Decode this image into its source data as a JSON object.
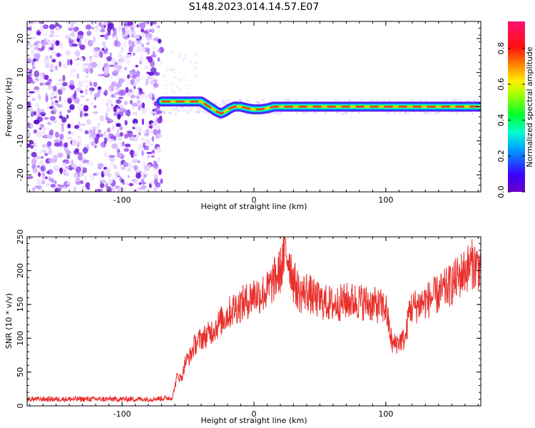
{
  "title": "S148.2023.014.14.57.E07",
  "colors": {
    "snr_line": "#e8302c",
    "noise_purple": "#7b1fe0",
    "axis": "#000000"
  },
  "chart_data": [
    {
      "type": "heatmap",
      "title": "S148.2023.014.14.57.E07",
      "xlabel": "Height of straight line (km)",
      "ylabel": "Frequency (Hz)",
      "xlim": [
        -172,
        172
      ],
      "ylim": [
        -25,
        25
      ],
      "x_ticks": [
        -100,
        0,
        100
      ],
      "y_ticks": [
        -20,
        -10,
        0,
        10,
        20
      ],
      "x_tick_labels": [
        "-100",
        "0",
        "100"
      ],
      "y_tick_labels": [
        "-20",
        "-10",
        "0",
        "10",
        "20"
      ],
      "colorbar": {
        "label": "Normalized spectral amplitude",
        "range": [
          0.0,
          0.95
        ],
        "ticks": [
          0.0,
          0.2,
          0.4,
          0.6,
          0.8
        ],
        "tick_labels": [
          "0.0",
          "0.2",
          "0.4",
          "0.6",
          "0.8"
        ],
        "colormap": "rainbow (purple-blue-cyan-green-yellow-red-magenta)"
      },
      "noise_region_x": [
        -172,
        -70
      ],
      "signal_track": {
        "x": [
          -70,
          -65,
          -60,
          -55,
          -50,
          -45,
          -40,
          -36,
          -32,
          -28,
          -25,
          -22,
          -18,
          -15,
          -10,
          -5,
          0,
          5,
          10,
          15,
          20,
          30,
          40,
          50,
          60,
          80,
          100,
          120,
          140,
          160,
          172
        ],
        "y": [
          1.5,
          1.5,
          1.5,
          1.5,
          1.5,
          1.5,
          1.5,
          0.5,
          -0.5,
          -1.5,
          -2.0,
          -1.5,
          -0.5,
          0.0,
          0.0,
          -0.5,
          -0.8,
          -0.8,
          -0.5,
          0.0,
          0.0,
          0.0,
          0.0,
          0.0,
          0.0,
          0.0,
          0.0,
          0.0,
          0.0,
          0.0,
          0.0
        ]
      }
    },
    {
      "type": "line",
      "xlabel": "Height of straight line (km)",
      "ylabel": "SNR (10 * v/v)",
      "xlim": [
        -172,
        172
      ],
      "ylim": [
        0,
        250
      ],
      "x_ticks": [
        -100,
        0,
        100
      ],
      "y_ticks": [
        0,
        50,
        100,
        150,
        200,
        250
      ],
      "x_tick_labels": [
        "-100",
        "0",
        "100"
      ],
      "y_tick_labels": [
        "0",
        "50",
        "100",
        "150",
        "200",
        "250"
      ],
      "series": [
        {
          "x": [
            -172,
            -150,
            -120,
            -100,
            -80,
            -62,
            -58,
            -55,
            -52,
            -48,
            -45,
            -40,
            -35,
            -30,
            -25,
            -20,
            -15,
            -10,
            -5,
            0,
            5,
            10,
            15,
            20,
            24,
            27,
            30,
            35,
            40,
            45,
            50,
            60,
            70,
            80,
            90,
            100,
            103,
            105,
            110,
            115,
            118,
            120,
            130,
            140,
            150,
            160,
            165,
            172
          ],
          "values": [
            10,
            10,
            10,
            10,
            10,
            12,
            45,
            40,
            65,
            75,
            90,
            100,
            105,
            115,
            125,
            135,
            145,
            150,
            155,
            165,
            165,
            170,
            185,
            200,
            230,
            215,
            185,
            165,
            170,
            160,
            155,
            150,
            155,
            155,
            150,
            145,
            110,
            90,
            95,
            100,
            145,
            145,
            155,
            165,
            180,
            200,
            210,
            205
          ]
        }
      ]
    }
  ]
}
